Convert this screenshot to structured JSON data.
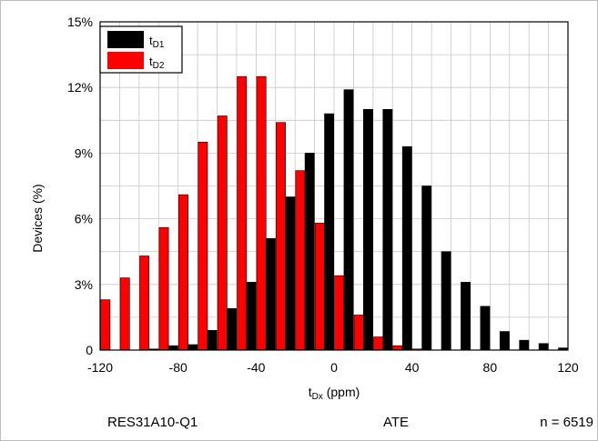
{
  "chart_data": {
    "type": "bar",
    "xlabel": "t",
    "xlabel_sub": "Dx",
    "xlabel_unit": " (ppm)",
    "ylabel": "Devices (%)",
    "xlim": [
      -120,
      120
    ],
    "ylim": [
      0,
      15
    ],
    "x_ticks": [
      -120,
      -80,
      -40,
      0,
      40,
      80,
      120
    ],
    "y_ticks": [
      0,
      3,
      6,
      9,
      12,
      15
    ],
    "y_tick_labels": [
      "0",
      "3%",
      "6%",
      "9%",
      "12%",
      "15%"
    ],
    "grid": true,
    "legend_position": "top-left",
    "bin_width": 10,
    "series": [
      {
        "name": "t",
        "name_sub": "D1",
        "color": "#000000",
        "x": [
          -115,
          -105,
          -95,
          -85,
          -75,
          -65,
          -55,
          -45,
          -35,
          -25,
          -15,
          -5,
          5,
          15,
          25,
          35,
          45,
          55,
          65,
          75,
          85,
          95,
          105,
          115
        ],
        "values": [
          0,
          0,
          0.05,
          0.2,
          0.25,
          0.9,
          1.9,
          3.1,
          5.1,
          7.0,
          9.0,
          10.8,
          11.9,
          11.0,
          11.0,
          9.3,
          7.5,
          4.5,
          3.1,
          2.0,
          0.85,
          0.45,
          0.3,
          0.1
        ]
      },
      {
        "name": "t",
        "name_sub": "D2",
        "color": "#ff0000",
        "x": [
          -115,
          -105,
          -95,
          -85,
          -75,
          -65,
          -55,
          -45,
          -35,
          -25,
          -15,
          -5,
          5,
          15,
          25,
          35,
          45,
          55,
          65,
          75,
          85,
          95,
          105,
          115
        ],
        "values": [
          2.3,
          3.3,
          4.3,
          5.6,
          7.1,
          9.5,
          10.7,
          12.5,
          12.5,
          10.4,
          8.2,
          5.8,
          3.4,
          1.6,
          0.6,
          0.2,
          0.05,
          0,
          0,
          0,
          0,
          0,
          0,
          0
        ]
      }
    ],
    "footer": {
      "part": "RES31A10-Q1",
      "method": "ATE",
      "count": "n = 6519"
    }
  }
}
